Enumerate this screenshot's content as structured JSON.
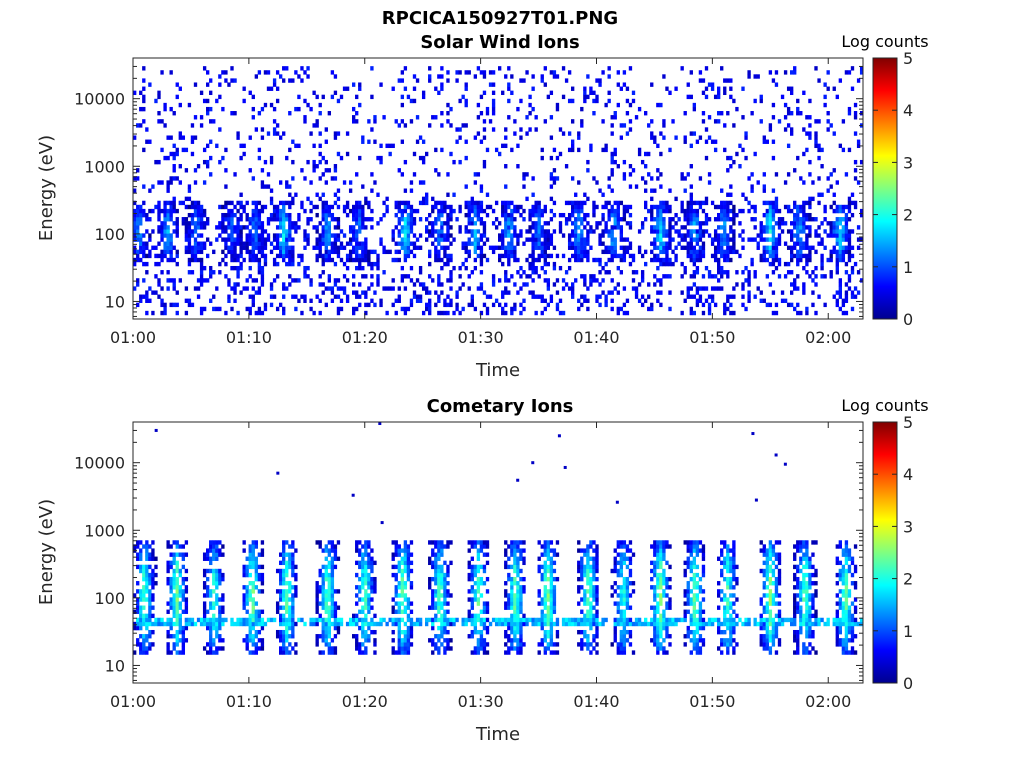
{
  "figure": {
    "title": "RPCICA150927T01.PNG"
  },
  "colors": {
    "colormap": [
      "#00008f",
      "#0000ff",
      "#0080ff",
      "#00ffff",
      "#80ff80",
      "#ffff00",
      "#ff8000",
      "#ff0000",
      "#800000"
    ],
    "axis": "#262626"
  },
  "chart_data": [
    {
      "type": "heatmap",
      "title": "Solar Wind Ions",
      "xlabel": "Time",
      "ylabel": "Energy (eV)",
      "x_ticks": [
        "01:00",
        "01:10",
        "01:20",
        "01:30",
        "01:40",
        "01:50",
        "02:00"
      ],
      "x_tick_minutes": [
        0,
        10,
        20,
        30,
        40,
        50,
        60
      ],
      "xlim_minutes": [
        0,
        63
      ],
      "y_ticks": [
        "10",
        "100",
        "1000",
        "10000"
      ],
      "y_tick_values": [
        10,
        100,
        1000,
        10000
      ],
      "ylim": [
        5.5,
        40000
      ],
      "y_scale": "log",
      "colorbar": {
        "label": "Log counts",
        "ticks": [
          "0",
          "1",
          "2",
          "3",
          "4",
          "5"
        ],
        "range": [
          0,
          5
        ]
      },
      "bursts_minutes": [
        0.5,
        3.0,
        5.5,
        8.5,
        10.5,
        13.0,
        16.8,
        19.5,
        23.5,
        26.5,
        29.5,
        32.5,
        35.0,
        38.5,
        41.5,
        45.5,
        48.5,
        51.0,
        55.0,
        57.5,
        61.0
      ],
      "burst_peak_log_counts": [
        1.3,
        1.5,
        1.2,
        1.0,
        1.2,
        1.8,
        1.4,
        1.2,
        1.8,
        1.3,
        1.6,
        1.5,
        1.3,
        1.4,
        1.6,
        1.8,
        1.5,
        1.4,
        1.9,
        1.4,
        1.8
      ],
      "burst_energy_range_eV": [
        40,
        300
      ],
      "background_log_counts": 0.3,
      "background_energy_range_eV": [
        6,
        30000
      ]
    },
    {
      "type": "heatmap",
      "title": "Cometary Ions",
      "xlabel": "Time",
      "ylabel": "Energy (eV)",
      "x_ticks": [
        "01:00",
        "01:10",
        "01:20",
        "01:30",
        "01:40",
        "01:50",
        "02:00"
      ],
      "x_tick_minutes": [
        0,
        10,
        20,
        30,
        40,
        50,
        60
      ],
      "xlim_minutes": [
        0,
        63
      ],
      "y_ticks": [
        "10",
        "100",
        "1000",
        "10000"
      ],
      "y_tick_values": [
        10,
        100,
        1000,
        10000
      ],
      "ylim": [
        5.5,
        40000
      ],
      "y_scale": "log",
      "colorbar": {
        "label": "Log counts",
        "ticks": [
          "0",
          "1",
          "2",
          "3",
          "4",
          "5"
        ],
        "range": [
          0,
          5
        ]
      },
      "bursts_minutes": [
        1.0,
        3.8,
        7.0,
        10.3,
        13.3,
        16.8,
        20.0,
        23.3,
        26.5,
        29.8,
        33.0,
        35.8,
        39.3,
        42.3,
        45.5,
        48.5,
        51.3,
        55.0,
        58.0,
        61.5
      ],
      "burst_peak_log_counts": [
        2.3,
        2.4,
        2.2,
        2.5,
        2.4,
        2.4,
        2.3,
        2.5,
        2.3,
        2.3,
        2.4,
        2.6,
        2.4,
        2.1,
        2.6,
        2.5,
        2.3,
        2.6,
        2.4,
        2.4
      ],
      "burst_energy_range_eV": [
        15,
        700
      ],
      "band_energy_eV": 45,
      "band_log_counts": 1.9,
      "sparse_points": [
        {
          "minute": 2.0,
          "energy": 30000,
          "log_counts": 0.3
        },
        {
          "minute": 12.5,
          "energy": 7000,
          "log_counts": 0.3
        },
        {
          "minute": 19.0,
          "energy": 3300,
          "log_counts": 0.3
        },
        {
          "minute": 21.3,
          "energy": 38000,
          "log_counts": 0.3
        },
        {
          "minute": 21.5,
          "energy": 1300,
          "log_counts": 0.3
        },
        {
          "minute": 33.2,
          "energy": 5500,
          "log_counts": 0.3
        },
        {
          "minute": 34.5,
          "energy": 10000,
          "log_counts": 0.3
        },
        {
          "minute": 36.8,
          "energy": 25000,
          "log_counts": 0.3
        },
        {
          "minute": 37.3,
          "energy": 8500,
          "log_counts": 0.3
        },
        {
          "minute": 41.8,
          "energy": 2600,
          "log_counts": 0.3
        },
        {
          "minute": 53.5,
          "energy": 27000,
          "log_counts": 0.3
        },
        {
          "minute": 53.8,
          "energy": 2800,
          "log_counts": 0.3
        },
        {
          "minute": 55.5,
          "energy": 13000,
          "log_counts": 0.3
        },
        {
          "minute": 56.3,
          "energy": 9500,
          "log_counts": 0.3
        }
      ]
    }
  ]
}
